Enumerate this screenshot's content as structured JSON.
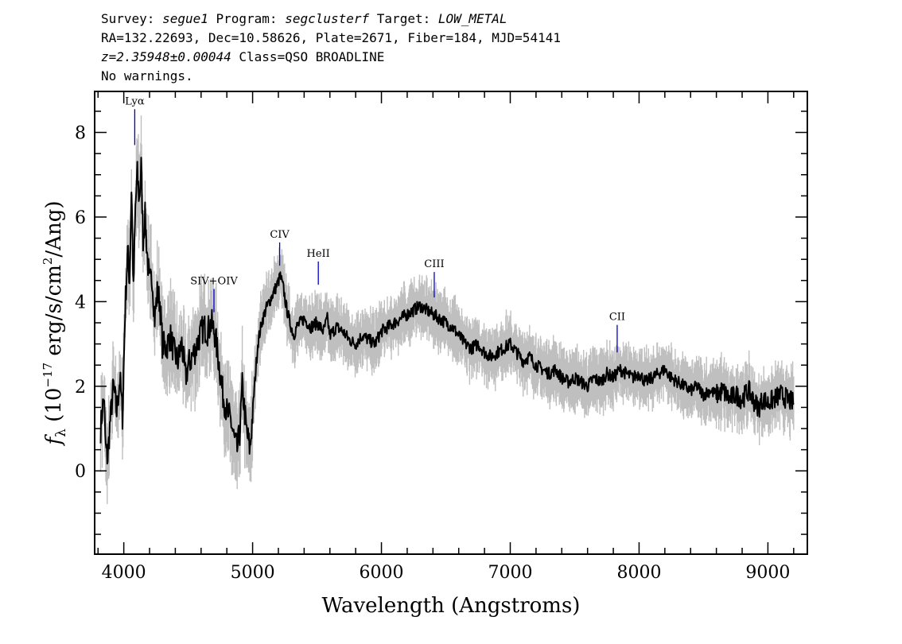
{
  "header": {
    "survey_label": "Survey: ",
    "survey": "segue1",
    "program_label": " Program: ",
    "program": "segclusterf",
    "target_label": " Target: ",
    "target": "LOW_METAL",
    "coords": "RA=132.22693, Dec=10.58626, Plate=2671, Fiber=184, MJD=54141",
    "redshift": "z=2.35948±0.00044",
    "class_text": " Class=QSO BROADLINE",
    "warnings": "No warnings."
  },
  "chart_data": {
    "type": "line",
    "xlabel": "Wavelength (Angstroms)",
    "ylabel_parts": {
      "f": "f",
      "sub": "λ",
      "open": " (10",
      "exp": "−17",
      "mid": " erg/s/cm",
      "exp2": "2",
      "close": "/Ang)"
    },
    "xlim": [
      3780,
      9300
    ],
    "ylim": [
      -1.95,
      8.95
    ],
    "x_ticks": [
      4000,
      5000,
      6000,
      7000,
      8000,
      9000
    ],
    "y_ticks": [
      0,
      2,
      4,
      6,
      8
    ],
    "x_tick_labels": [
      "4000",
      "5000",
      "6000",
      "7000",
      "8000",
      "9000"
    ],
    "y_tick_labels": [
      "0",
      "2",
      "4",
      "6",
      "8"
    ],
    "colors": {
      "flux": "#000000",
      "error_band": "#bfbfbf",
      "line_marker": "#0000cc"
    },
    "series": [
      {
        "name": "flux",
        "x": [
          3820,
          3845,
          3860,
          3875,
          3895,
          3920,
          3945,
          3970,
          3990,
          4010,
          4030,
          4045,
          4060,
          4075,
          4090,
          4105,
          4120,
          4135,
          4150,
          4165,
          4180,
          4200,
          4220,
          4240,
          4260,
          4280,
          4300,
          4330,
          4360,
          4390,
          4420,
          4450,
          4480,
          4500,
          4530,
          4560,
          4590,
          4620,
          4650,
          4680,
          4710,
          4740,
          4770,
          4800,
          4830,
          4860,
          4880,
          4900,
          4920,
          4950,
          4980,
          5010,
          5040,
          5070,
          5100,
          5130,
          5160,
          5190,
          5215,
          5240,
          5260,
          5290,
          5320,
          5340,
          5370,
          5400,
          5450,
          5500,
          5550,
          5580,
          5600,
          5650,
          5700,
          5750,
          5800,
          5850,
          5900,
          5950,
          6000,
          6050,
          6100,
          6150,
          6200,
          6250,
          6300,
          6350,
          6400,
          6450,
          6500,
          6550,
          6600,
          6650,
          6700,
          6750,
          6800,
          6850,
          6900,
          6950,
          7000,
          7050,
          7100,
          7150,
          7200,
          7250,
          7300,
          7350,
          7400,
          7450,
          7500,
          7550,
          7600,
          7650,
          7700,
          7750,
          7800,
          7850,
          7900,
          7950,
          8000,
          8050,
          8100,
          8150,
          8200,
          8250,
          8300,
          8350,
          8400,
          8450,
          8500,
          8550,
          8600,
          8650,
          8700,
          8750,
          8800,
          8850,
          8900,
          8930,
          8960,
          9000,
          9050,
          9100,
          9150,
          9200
        ],
        "y": [
          1.0,
          1.8,
          0.5,
          0.3,
          1.2,
          2.0,
          1.4,
          2.2,
          1.3,
          3.8,
          5.2,
          4.5,
          6.7,
          4.2,
          6.2,
          7.0,
          6.4,
          7.2,
          5.5,
          6.0,
          5.2,
          4.4,
          4.6,
          3.6,
          4.2,
          4.0,
          3.0,
          2.9,
          3.2,
          2.8,
          2.6,
          3.0,
          2.2,
          2.5,
          2.7,
          2.9,
          3.2,
          3.4,
          3.3,
          3.5,
          3.2,
          2.5,
          1.8,
          1.4,
          1.2,
          0.7,
          0.5,
          0.9,
          2.0,
          1.0,
          0.5,
          1.8,
          3.0,
          3.5,
          3.8,
          4.0,
          4.2,
          4.4,
          4.6,
          4.3,
          3.9,
          3.5,
          3.2,
          3.4,
          3.5,
          3.6,
          3.4,
          3.5,
          3.3,
          3.6,
          3.2,
          3.4,
          3.3,
          3.1,
          3.0,
          3.2,
          3.1,
          3.0,
          3.3,
          3.4,
          3.5,
          3.6,
          3.7,
          3.8,
          3.9,
          3.8,
          3.7,
          3.6,
          3.5,
          3.4,
          3.2,
          3.0,
          2.9,
          3.0,
          2.8,
          2.7,
          2.8,
          2.9,
          3.0,
          2.8,
          2.6,
          2.7,
          2.5,
          2.4,
          2.3,
          2.4,
          2.2,
          2.1,
          2.2,
          2.1,
          2.0,
          2.2,
          2.1,
          2.3,
          2.2,
          2.4,
          2.3,
          2.2,
          2.3,
          2.1,
          2.2,
          2.3,
          2.4,
          2.2,
          2.1,
          2.0,
          1.9,
          2.0,
          1.8,
          1.9,
          1.8,
          1.9,
          1.7,
          1.8,
          1.7,
          1.9,
          1.6,
          1.5,
          1.7,
          1.6,
          1.7,
          1.8,
          1.7,
          1.6
        ]
      }
    ],
    "lines": [
      {
        "label": "Lyα",
        "x": 4085,
        "y_top": 8.55,
        "y_bottom": 7.7
      },
      {
        "label": "SIV+OIV",
        "x": 4700,
        "y_top": 4.3,
        "y_bottom": 3.75
      },
      {
        "label": "CIV",
        "x": 5210,
        "y_top": 5.4,
        "y_bottom": 4.85
      },
      {
        "label": "HeII",
        "x": 5510,
        "y_top": 4.95,
        "y_bottom": 4.4
      },
      {
        "label": "CIII",
        "x": 6410,
        "y_top": 4.7,
        "y_bottom": 4.1
      },
      {
        "label": "CII",
        "x": 7830,
        "y_top": 3.45,
        "y_bottom": 2.8
      }
    ]
  }
}
